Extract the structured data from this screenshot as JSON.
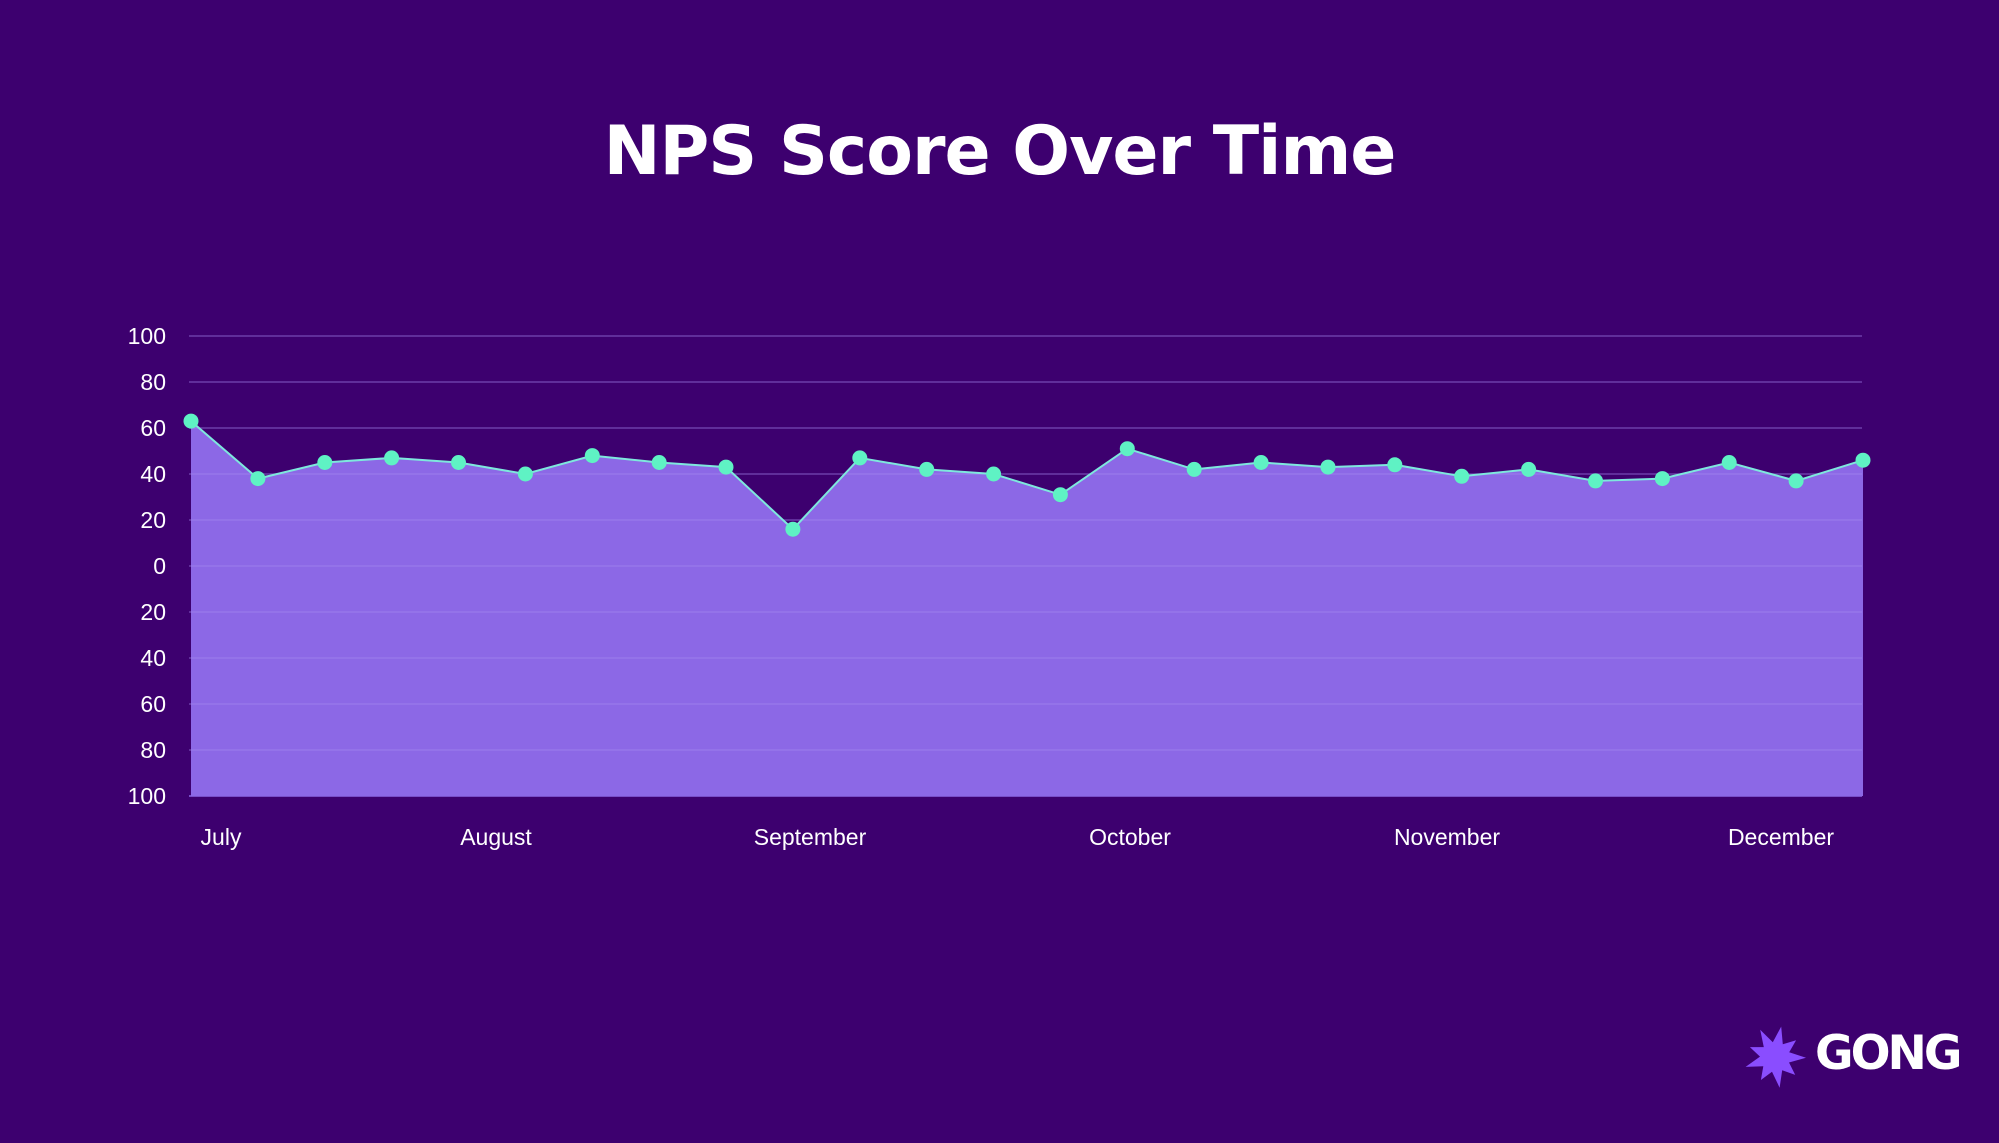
{
  "colors": {
    "background": "#3d006f",
    "area_fill": "#8c68e6",
    "line": "#7ee8dd",
    "marker": "#5ff2c4",
    "grid": "#6a35a8",
    "text": "#ffffff",
    "logo_accent": "#8a4dff"
  },
  "chart_data": {
    "type": "area",
    "title": "NPS Score Over Time",
    "xlabel": "",
    "ylabel": "",
    "ylim": [
      -100,
      100
    ],
    "y_ticks": [
      100,
      80,
      60,
      40,
      20,
      0,
      -20,
      -40,
      -60,
      -80,
      -100
    ],
    "y_tick_labels": [
      "100",
      "80",
      "60",
      "40",
      "20",
      "0",
      "20",
      "40",
      "60",
      "80",
      "100"
    ],
    "x_labels": [
      "July",
      "August",
      "September",
      "October",
      "November",
      "December"
    ],
    "grid": true,
    "legend": "none",
    "series": [
      {
        "values": [
          63,
          38,
          45,
          47,
          45,
          40,
          48,
          45,
          43,
          16,
          47,
          42,
          40,
          31,
          51,
          42,
          45,
          43,
          44,
          39,
          42,
          37,
          38,
          45,
          37,
          46
        ]
      }
    ]
  },
  "logo": {
    "text": "GONG",
    "icon": "starburst-icon"
  }
}
